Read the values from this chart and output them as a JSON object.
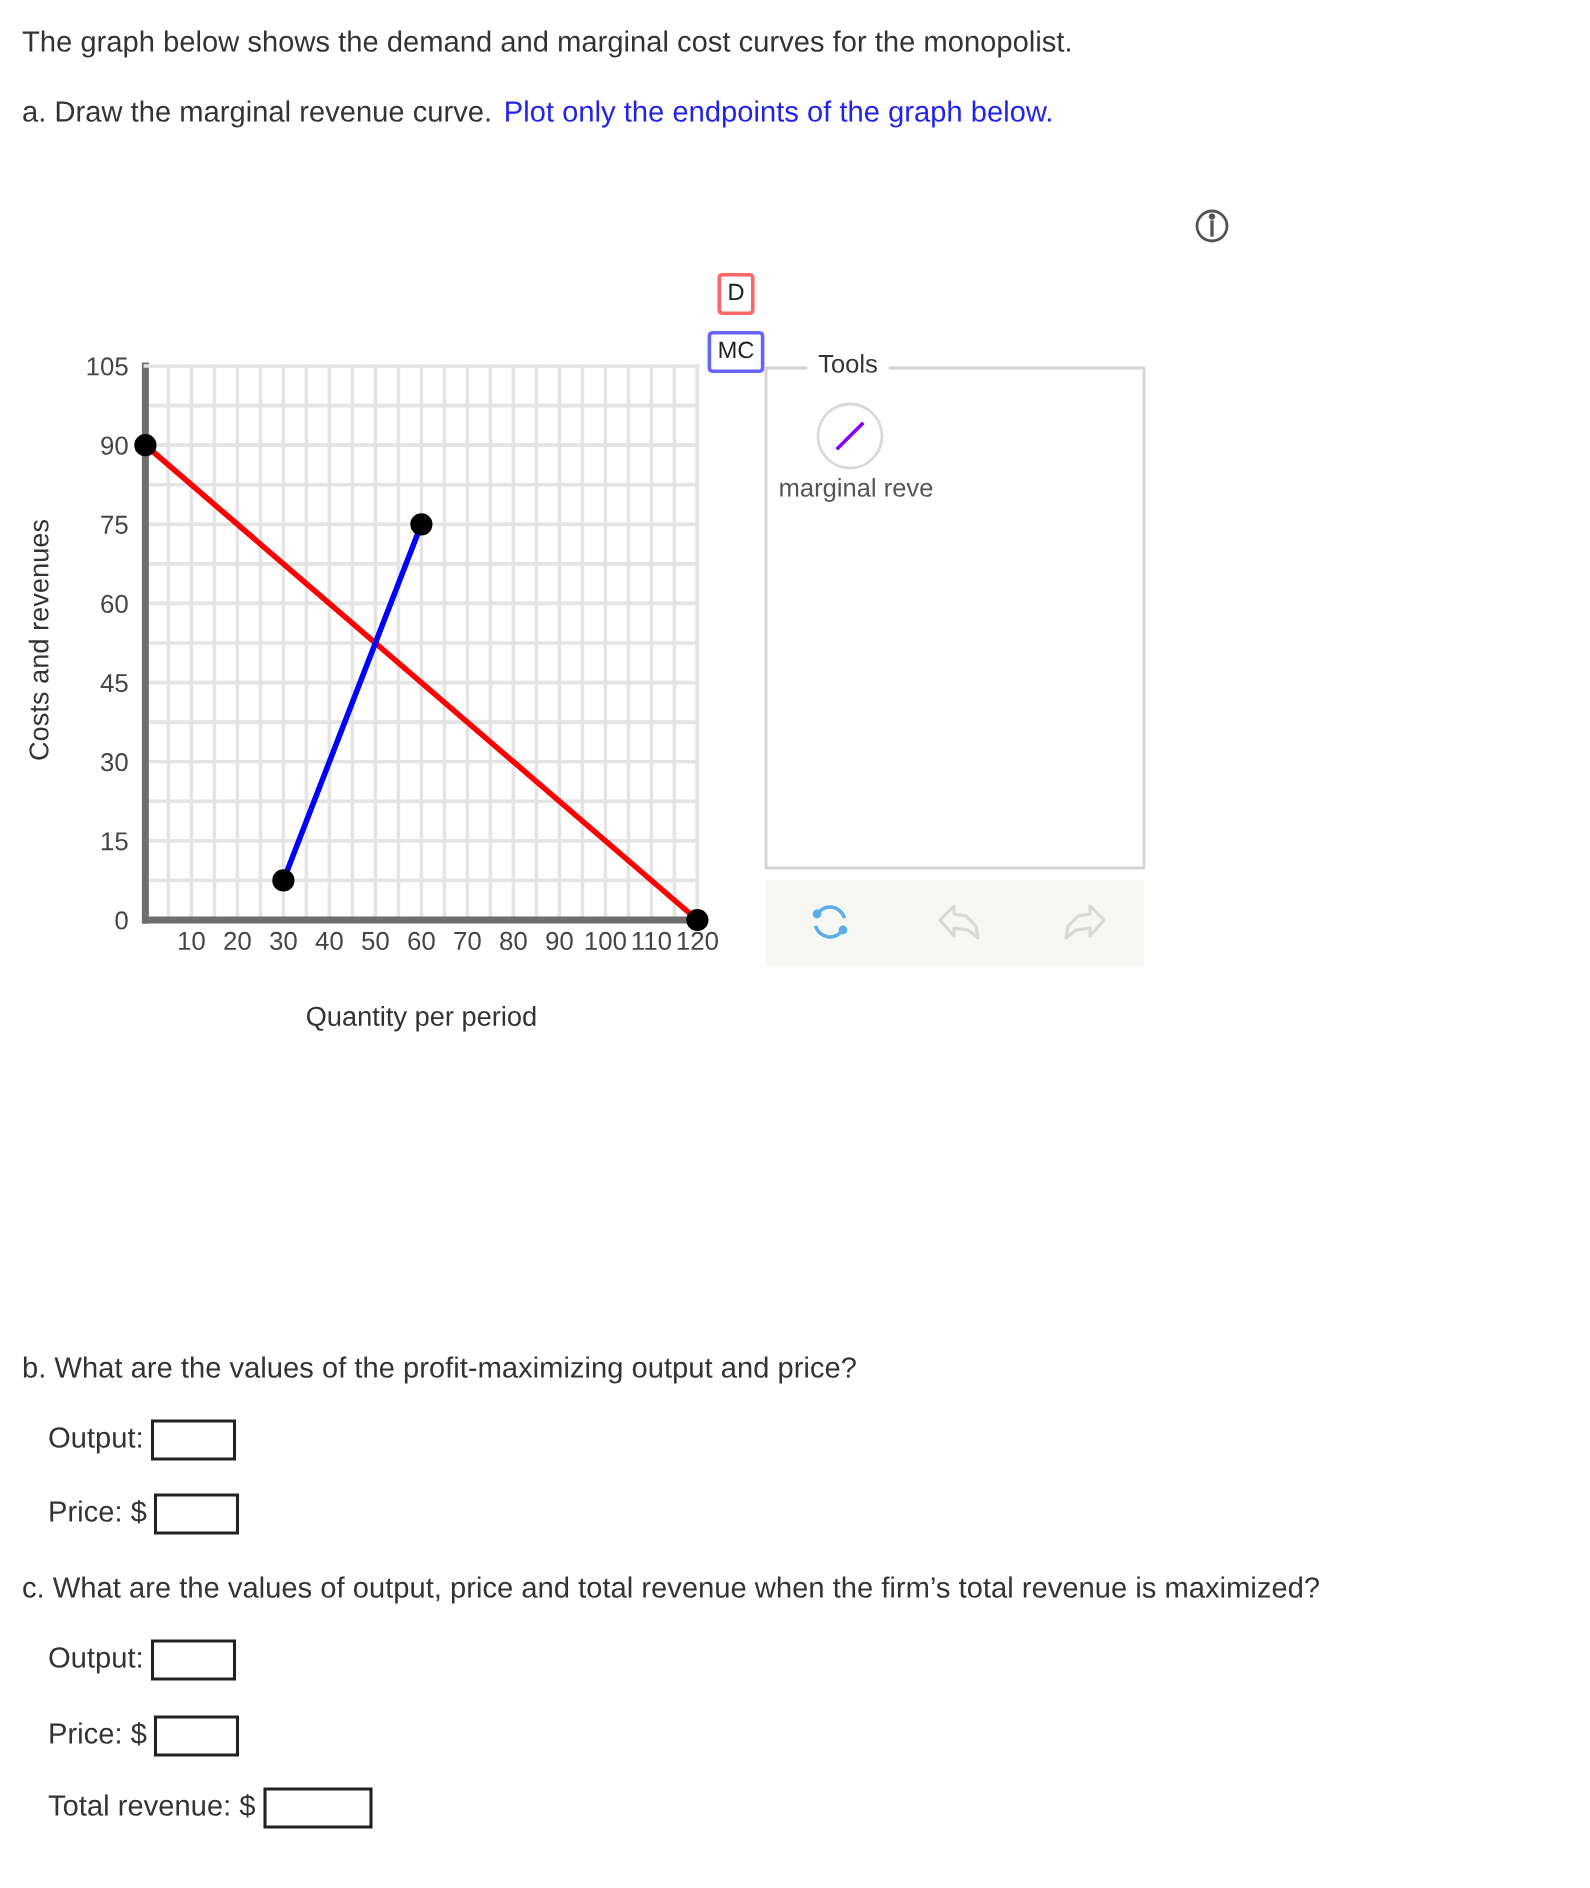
{
  "chart_data": {
    "type": "line",
    "title": "The graph below shows the demand and marginal cost curves for the monopolist.",
    "xlabel": "Quantity per period",
    "ylabel": "Costs and revenues",
    "series": [
      {
        "name": "D",
        "color": "#ff0000",
        "x": [
          0,
          120
        ],
        "values": [
          90,
          0
        ]
      },
      {
        "name": "MC",
        "color": "#0000ff",
        "x": [
          30,
          60
        ],
        "values": [
          7.5,
          75
        ]
      }
    ],
    "xlim": [
      0,
      120
    ],
    "ylim": [
      0,
      105
    ],
    "xticks": [
      10,
      20,
      30,
      40,
      50,
      60,
      70,
      80,
      90,
      100,
      110,
      120
    ],
    "yticks": [
      0,
      15,
      30,
      45,
      60,
      75,
      90,
      105
    ],
    "grid": true,
    "legend": "top right",
    "marker": "circle",
    "annotations": [
      "a. Draw the marginal revenue curve.",
      "Plot only the endpoints of the graph below.",
      "Tools",
      "marginal reve",
      "b. What are the values of the profit-maximizing output and price?",
      "Output:",
      "Price: $",
      "c. What are the values of output, price and total revenue when the firm’s total revenue is maximized?",
      "Output:",
      "Price: $",
      "Total revenue: $"
    ]
  }
}
